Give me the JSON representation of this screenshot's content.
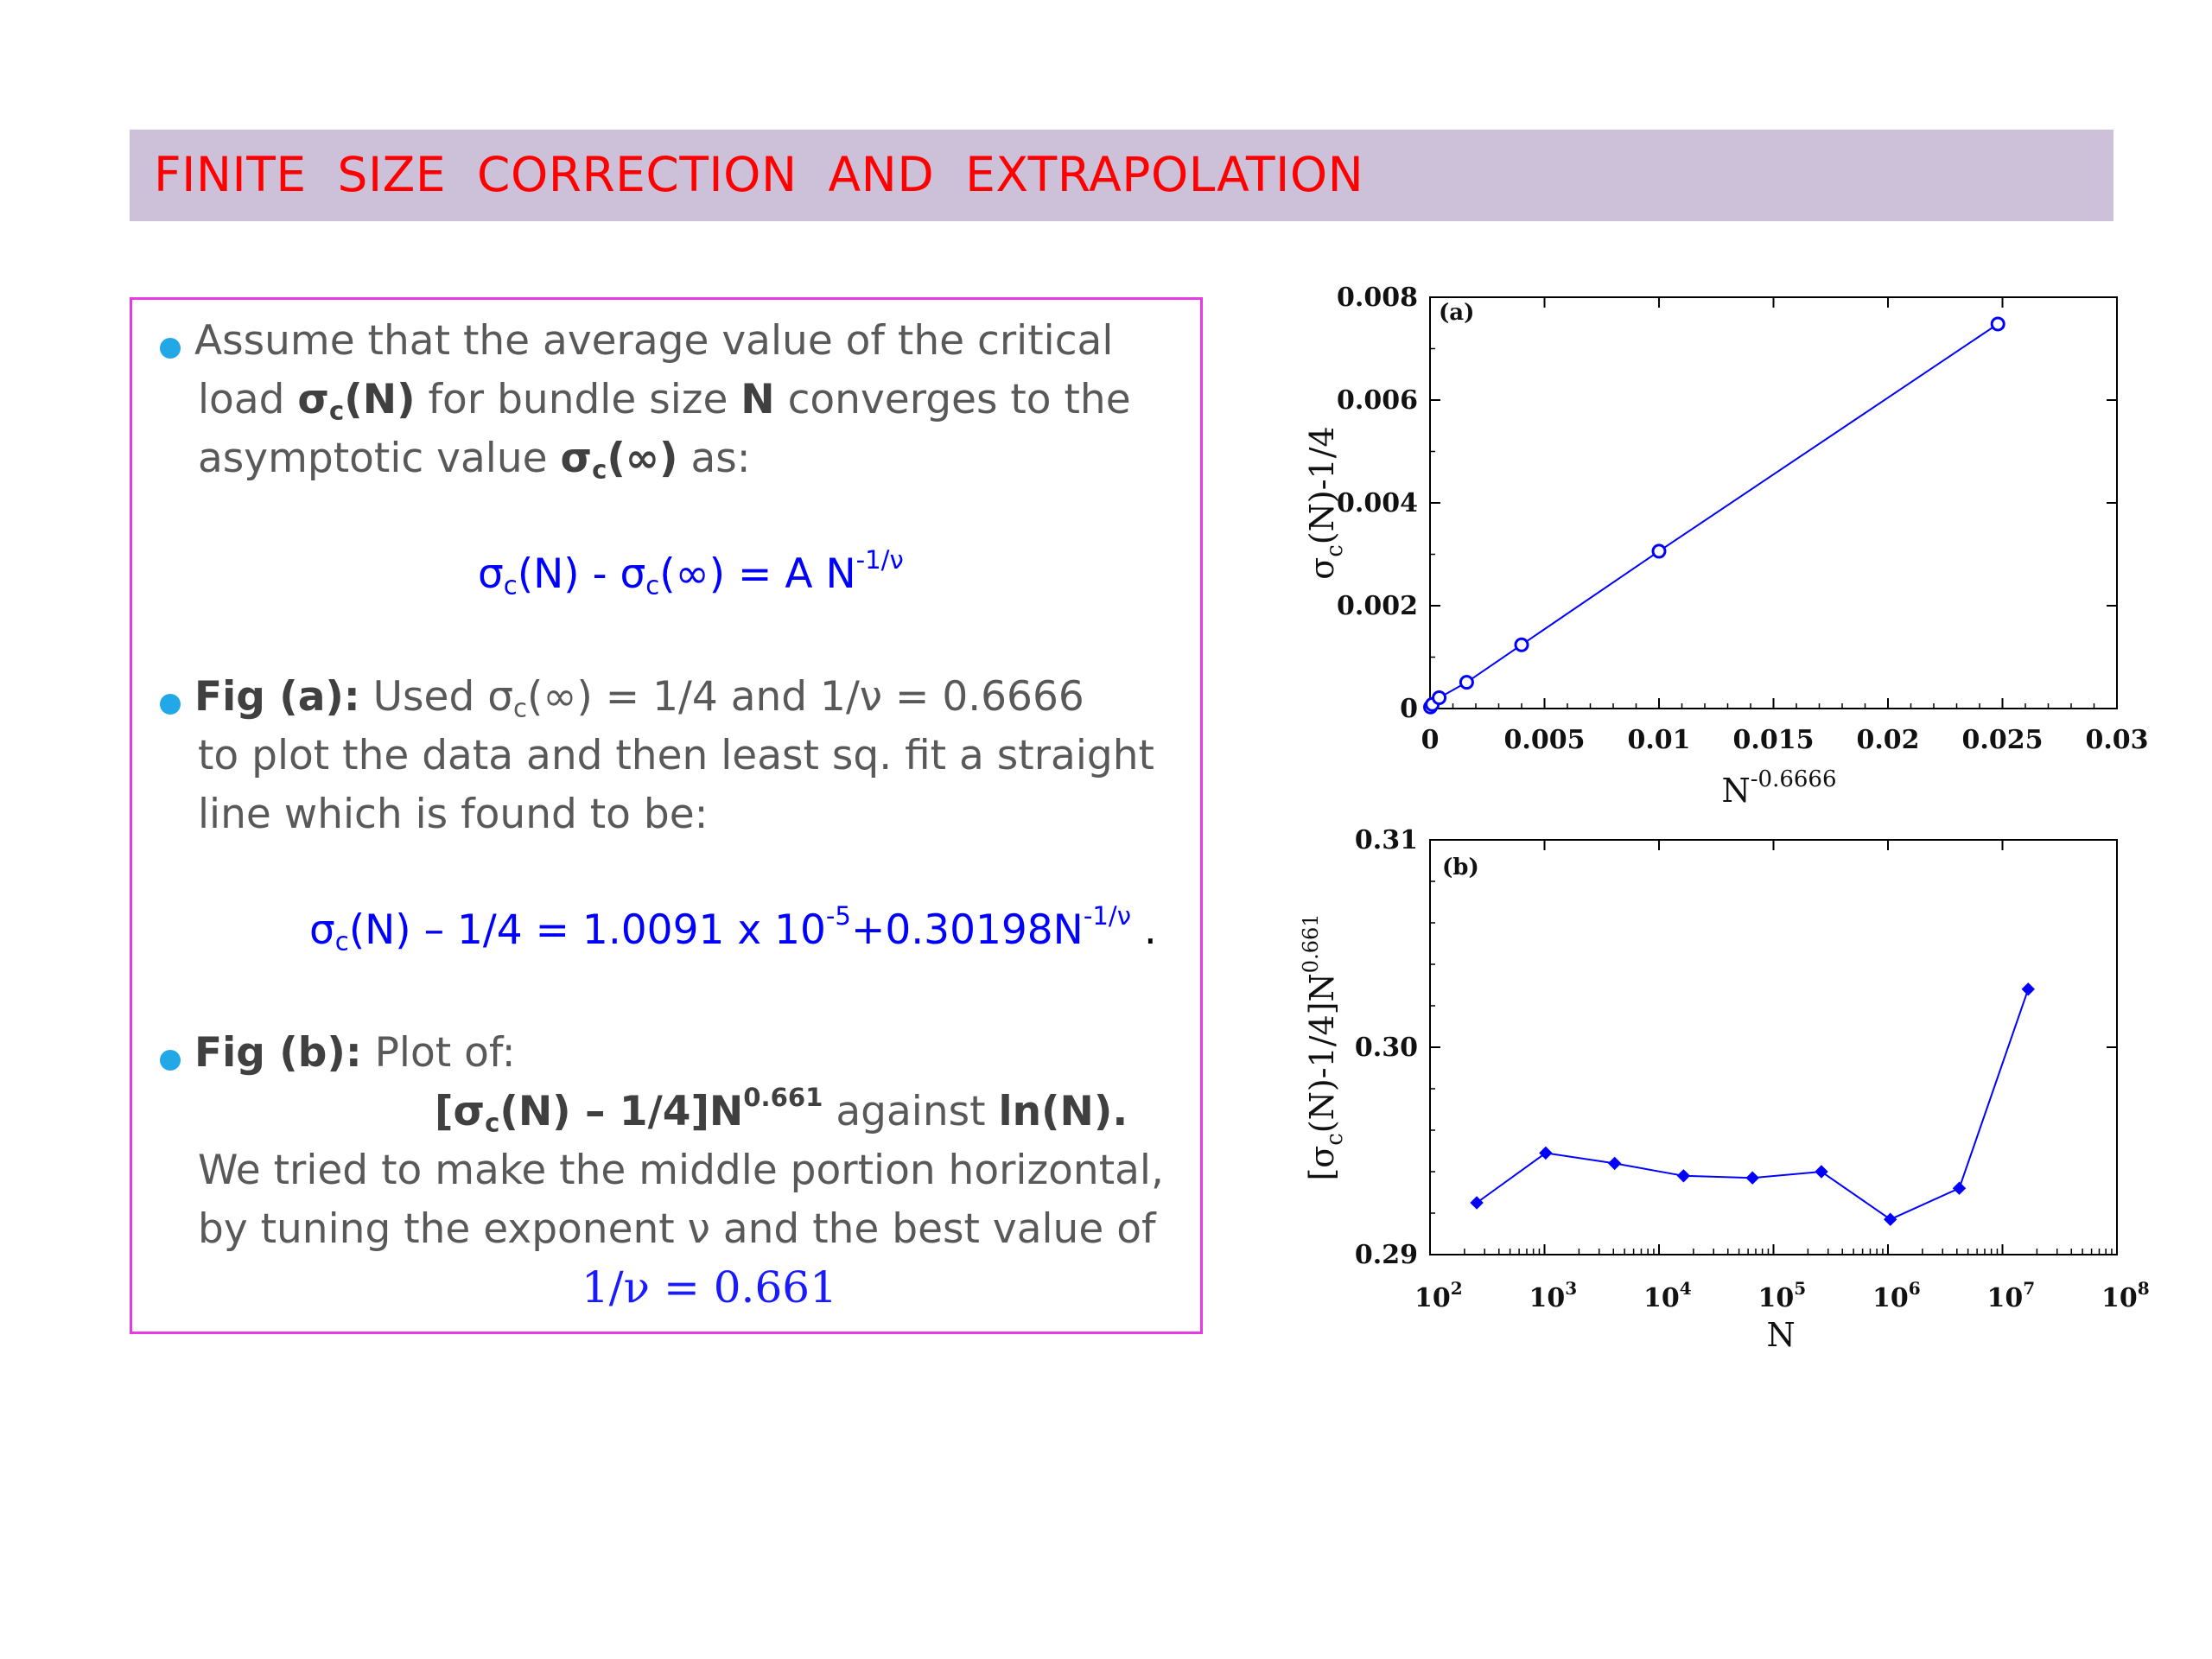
{
  "title": "FINITE  SIZE  CORRECTION  AND  EXTRAPOLATION",
  "text": {
    "b1": {
      "l1": "Assume that the average value of the critical",
      "l2a": "load ",
      "l2_sigma": "σ",
      "l2_sub": "c",
      "l2_n": "(N)",
      "l2b": " for bundle size ",
      "l2_N": "N",
      "l2c": " converges to the",
      "l3a": "asymptotic value ",
      "l3_sigma": "σ",
      "l3_sub": "c",
      "l3_inf": "(∞)",
      "l3b": " as:",
      "eq_p1": "σ",
      "eq_sub1": "c",
      "eq_p2": "(N) - σ",
      "eq_sub2": "c",
      "eq_p3": "(∞) = A N",
      "eq_sup": "-1/ν"
    },
    "b2": {
      "label": "Fig (a):",
      "l1a": " Used σ",
      "l1_sub": "c",
      "l1b": "(∞) = 1/4 and 1/ν = 0.6666",
      "l2": "to plot the data and then least sq. fit a straight",
      "l3": "line which is found to be:",
      "eq_p1": "σ",
      "eq_sub": "c",
      "eq_p2": "(N) – 1/4 = 1.0091 x 10",
      "eq_sup1": "-5",
      "eq_p3": "+0.30198N",
      "eq_sup2": "-1/ν",
      "eq_end": " ."
    },
    "b3": {
      "label": "Fig (b):",
      "l1b": " Plot of:",
      "l2_p1": "[σ",
      "l2_sub": "c",
      "l2_p2": "(N) – 1/4]N",
      "l2_sup": "0.661",
      "l2_mid": " against ",
      "l2_ln": "ln(N).",
      "l3": "We tried to make the middle portion horizontal,",
      "l4": "by tuning the exponent ν and the best value of",
      "eq": "1/ν = 0.661"
    }
  },
  "chart_data": [
    {
      "type": "line",
      "panel_label": "(a)",
      "x": [
        2e-05,
        0.0001,
        0.0004,
        0.0016,
        0.004,
        0.01,
        0.0248
      ],
      "y": [
        3e-05,
        8e-05,
        0.00021,
        0.00051,
        0.00124,
        0.00306,
        0.00748
      ],
      "marker": "open-circle",
      "color": "#0000ff",
      "xlim": [
        0,
        0.03
      ],
      "ylim": [
        0,
        0.008
      ],
      "xticks": [
        "0",
        "0.005",
        "0.01",
        "0.015",
        "0.02",
        "0.025",
        "0.03"
      ],
      "yticks": [
        "0",
        "0.002",
        "0.004",
        "0.006",
        "0.008"
      ],
      "xlabel_base": "N",
      "xlabel_sup": "-0.6666",
      "ylabel_p1": "σ",
      "ylabel_sub": "c",
      "ylabel_p2": "(N)-1/4"
    },
    {
      "type": "line",
      "panel_label": "(b)",
      "x": [
        256,
        1024,
        4096,
        16384,
        65536,
        262144,
        1048576,
        4194304,
        16777216
      ],
      "y": [
        0.2925,
        0.2949,
        0.2944,
        0.2938,
        0.2937,
        0.294,
        0.2917,
        0.2932,
        0.3028
      ],
      "marker": "filled-diamond",
      "color": "#0000ff",
      "xscale": "log",
      "xlim": [
        100,
        100000000
      ],
      "ylim": [
        0.29,
        0.31
      ],
      "xticks_exp": [
        "2",
        "3",
        "4",
        "5",
        "6",
        "7",
        "8"
      ],
      "xtick_base": "10",
      "yticks": [
        "0.29",
        "0.30",
        "0.31"
      ],
      "xlabel": "N",
      "ylabel_p1": "[σ",
      "ylabel_sub": "c",
      "ylabel_p2": "(N)-1/4]N",
      "ylabel_sup": "0.661"
    }
  ]
}
